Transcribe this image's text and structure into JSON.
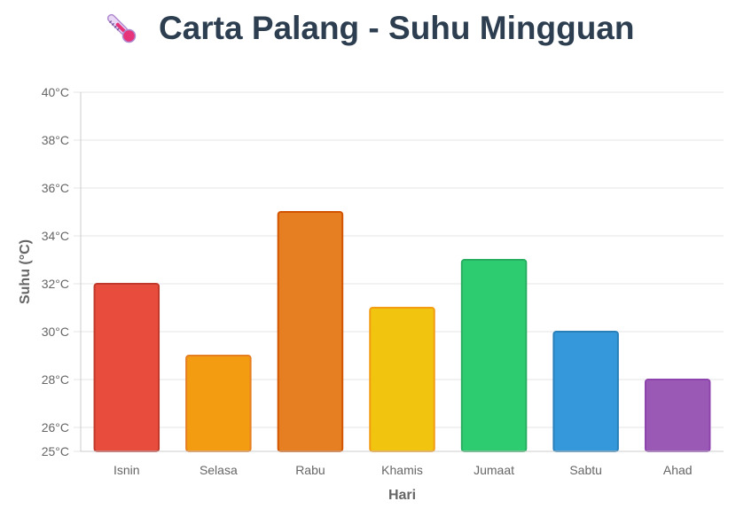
{
  "header": {
    "icon": "thermometer-icon",
    "title": "Carta Palang - Suhu Mingguan"
  },
  "chart_data": {
    "type": "bar",
    "title": "Carta Palang - Suhu Mingguan",
    "xlabel": "Hari",
    "ylabel": "Suhu (°C)",
    "categories": [
      "Isnin",
      "Selasa",
      "Rabu",
      "Khamis",
      "Jumaat",
      "Sabtu",
      "Ahad"
    ],
    "values": [
      32,
      29,
      35,
      31,
      33,
      30,
      28
    ],
    "unit": "°C",
    "ylim": [
      25,
      40
    ],
    "yticks": [
      25,
      26,
      28,
      30,
      32,
      34,
      36,
      38,
      40
    ],
    "ytick_labels": [
      "25°C",
      "26°C",
      "28°C",
      "30°C",
      "32°C",
      "34°C",
      "36°C",
      "38°C",
      "40°C"
    ],
    "colors": [
      "#e74c3c",
      "#f39c12",
      "#e67e22",
      "#f1c40f",
      "#2ecc71",
      "#3498db",
      "#9b59b6"
    ],
    "border_colors": [
      "#c0392b",
      "#e67e22",
      "#d35400",
      "#f39c12",
      "#27ae60",
      "#2980b9",
      "#8e44ad"
    ],
    "grid": true,
    "legend": "none"
  }
}
